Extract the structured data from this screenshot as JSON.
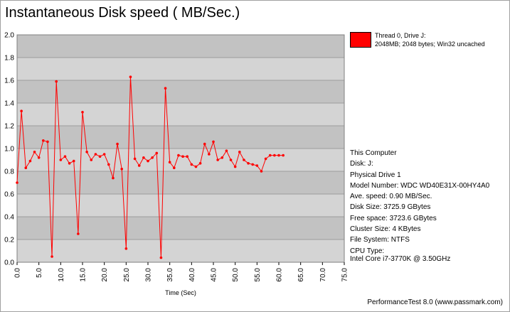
{
  "window": {
    "title": "Instantaneous Disk speed ( MB/Sec.)",
    "footer": "PerformanceTest 8.0 (www.passmark.com)"
  },
  "legend": {
    "line1": "Thread 0, Drive J:",
    "line2": "2048MB; 2048 bytes; Win32 uncached",
    "color": "#ff0000"
  },
  "info": {
    "computer": "This Computer",
    "disk": "Disk: J:",
    "drive": "Physical Drive 1",
    "model": "Model Number: WDC WD40E31X-00HY4A0",
    "avg_speed": "Ave. speed: 0.90 MB/Sec.",
    "disk_size": "Disk Size: 3725.9 GBytes",
    "free_space": "Free space: 3723.6 GBytes",
    "cluster_size": "Cluster Size: 4 KBytes",
    "file_system": "File System: NTFS",
    "cpu_type": "CPU Type:",
    "cpu_value": "Intel Core i7-3770K @ 3.50GHz"
  },
  "chart_data": {
    "type": "line",
    "title": "Instantaneous Disk speed ( MB/Sec.)",
    "xlabel": "Time (Sec)",
    "ylabel": "",
    "xlim": [
      0,
      75
    ],
    "ylim": [
      0,
      2
    ],
    "x_ticks": [
      0,
      5,
      10,
      15,
      20,
      25,
      30,
      35,
      40,
      45,
      50,
      55,
      60,
      65,
      70,
      75
    ],
    "x_tick_labels": [
      "0.0",
      "5.0",
      "10.0",
      "15.0",
      "20.0",
      "25.0",
      "30.0",
      "35.0",
      "40.0",
      "45.0",
      "50.0",
      "55.0",
      "60.0",
      "65.0",
      "70.0",
      "75.0"
    ],
    "y_ticks": [
      0,
      0.2,
      0.4,
      0.6,
      0.8,
      1.0,
      1.2,
      1.4,
      1.6,
      1.8,
      2.0
    ],
    "y_tick_labels": [
      "0.0",
      "0.2",
      "0.4",
      "0.6",
      "0.8",
      "1.0",
      "1.2",
      "1.4",
      "1.6",
      "1.8",
      "2.0"
    ],
    "grid": true,
    "legend_position": "top-right",
    "series": [
      {
        "name": "Thread 0, Drive J:",
        "color": "#ff0000",
        "x": [
          0,
          1,
          2,
          3,
          4,
          5,
          6,
          7,
          8,
          9,
          10,
          11,
          12,
          13,
          14,
          15,
          16,
          17,
          18,
          19,
          20,
          21,
          22,
          23,
          24,
          25,
          26,
          27,
          28,
          29,
          30,
          31,
          32,
          33,
          34,
          35,
          36,
          37,
          38,
          39,
          40,
          41,
          42,
          43,
          44,
          45,
          46,
          47,
          48,
          49,
          50,
          51,
          52,
          53,
          54,
          55,
          56,
          57,
          58,
          59,
          60,
          61
        ],
        "values": [
          0.7,
          1.33,
          0.83,
          0.89,
          0.97,
          0.92,
          1.07,
          1.06,
          0.05,
          1.59,
          0.9,
          0.93,
          0.87,
          0.89,
          0.25,
          1.32,
          0.97,
          0.9,
          0.95,
          0.93,
          0.95,
          0.86,
          0.74,
          1.04,
          0.82,
          0.12,
          1.63,
          0.91,
          0.85,
          0.92,
          0.89,
          0.92,
          0.96,
          0.04,
          1.53,
          0.88,
          0.83,
          0.94,
          0.93,
          0.93,
          0.86,
          0.84,
          0.87,
          1.04,
          0.95,
          1.06,
          0.9,
          0.92,
          0.98,
          0.9,
          0.84,
          0.97,
          0.9,
          0.87,
          0.86,
          0.85,
          0.8,
          0.91,
          0.94,
          0.94,
          0.94,
          0.94
        ]
      }
    ]
  }
}
